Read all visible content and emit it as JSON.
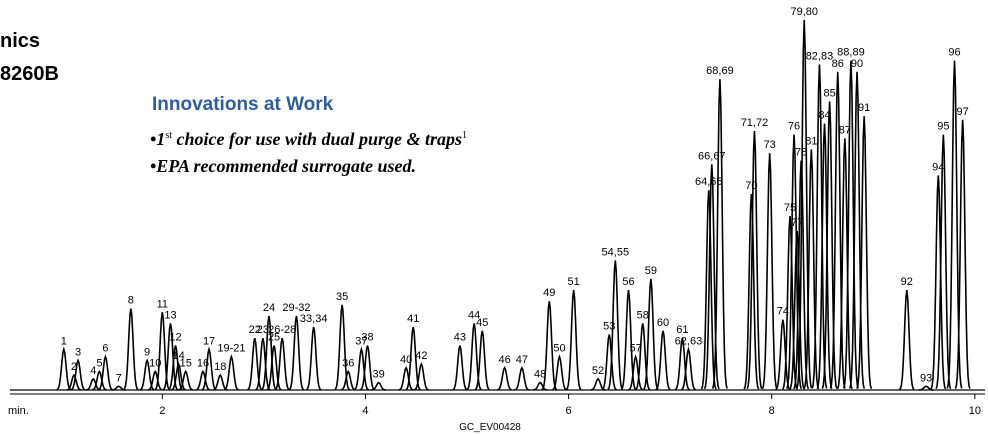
{
  "chart_data": {
    "type": "chromatogram",
    "title_lines": [
      "nics",
      "8260B"
    ],
    "heading": "Innovations at Work",
    "bullet_1": [
      "•1",
      "st",
      " choice for use with dual purge & traps",
      "1"
    ],
    "bullet_2": "•EPA recommended surrogate used.",
    "xlabel": "min.",
    "footer": "GC_EV00428",
    "color": "#000000",
    "xlim": [
      0.5,
      10.1
    ],
    "xticks": [
      2,
      4,
      6,
      8,
      10
    ],
    "ylim": [
      0,
      100
    ],
    "peaks": {
      "labels": [
        "1",
        "2",
        "3",
        "4",
        "5",
        "6",
        "7",
        "8",
        "9",
        "10",
        "11",
        "13",
        "12",
        "14",
        "15",
        "16",
        "17",
        "18",
        "19-21",
        "22",
        "23",
        "24",
        "25",
        "26-28",
        "29-32",
        "33,34",
        "35",
        "36",
        "37",
        "38",
        "39",
        "40",
        "41",
        "42",
        "43",
        "44",
        "45",
        "46",
        "47",
        "48",
        "49",
        "50",
        "51",
        "52",
        "53",
        "54,55",
        "56",
        "57",
        "58",
        "59",
        "60",
        "61",
        "62,63",
        "64,65",
        "66,67",
        "68,69",
        "70",
        "71,72",
        "73",
        "74",
        "75",
        "76",
        "77",
        "78",
        "79,80",
        "81",
        "82,83",
        "84",
        "85",
        "86",
        "87",
        "88,89",
        "90",
        "91",
        "92",
        "93",
        "94",
        "95",
        "96",
        "97"
      ],
      "x": [
        1.03,
        1.13,
        1.17,
        1.32,
        1.38,
        1.44,
        1.57,
        1.69,
        1.85,
        1.93,
        2.0,
        2.08,
        2.13,
        2.16,
        2.23,
        2.4,
        2.46,
        2.57,
        2.68,
        2.91,
        2.99,
        3.05,
        3.1,
        3.18,
        3.32,
        3.49,
        3.77,
        3.83,
        3.96,
        4.02,
        4.13,
        4.4,
        4.47,
        4.55,
        4.93,
        5.07,
        5.15,
        5.37,
        5.54,
        5.72,
        5.81,
        5.91,
        6.05,
        6.29,
        6.4,
        6.46,
        6.59,
        6.66,
        6.73,
        6.81,
        6.93,
        7.12,
        7.18,
        7.38,
        7.41,
        7.49,
        7.8,
        7.83,
        7.98,
        8.11,
        8.18,
        8.22,
        8.25,
        8.29,
        8.32,
        8.39,
        8.47,
        8.52,
        8.57,
        8.65,
        8.72,
        8.78,
        8.84,
        8.91,
        9.33,
        9.52,
        9.64,
        9.69,
        9.8,
        9.88
      ],
      "values": [
        11,
        4,
        8,
        3,
        5,
        9,
        1,
        22,
        8,
        5,
        21,
        18,
        12,
        7,
        5,
        5,
        11,
        4,
        9,
        14,
        14,
        20,
        12,
        14,
        20,
        17,
        23,
        5,
        11,
        12,
        2,
        6,
        17,
        7,
        12,
        18,
        16,
        6,
        6,
        2,
        24,
        9,
        27,
        3,
        15,
        35,
        27,
        9,
        18,
        30,
        16,
        14,
        11,
        54,
        61,
        84,
        53,
        70,
        64,
        19,
        47,
        69,
        43,
        62,
        100,
        65,
        88,
        72,
        78,
        86,
        68,
        89,
        86,
        74,
        27,
        1,
        58,
        69,
        89,
        73
      ]
    }
  }
}
